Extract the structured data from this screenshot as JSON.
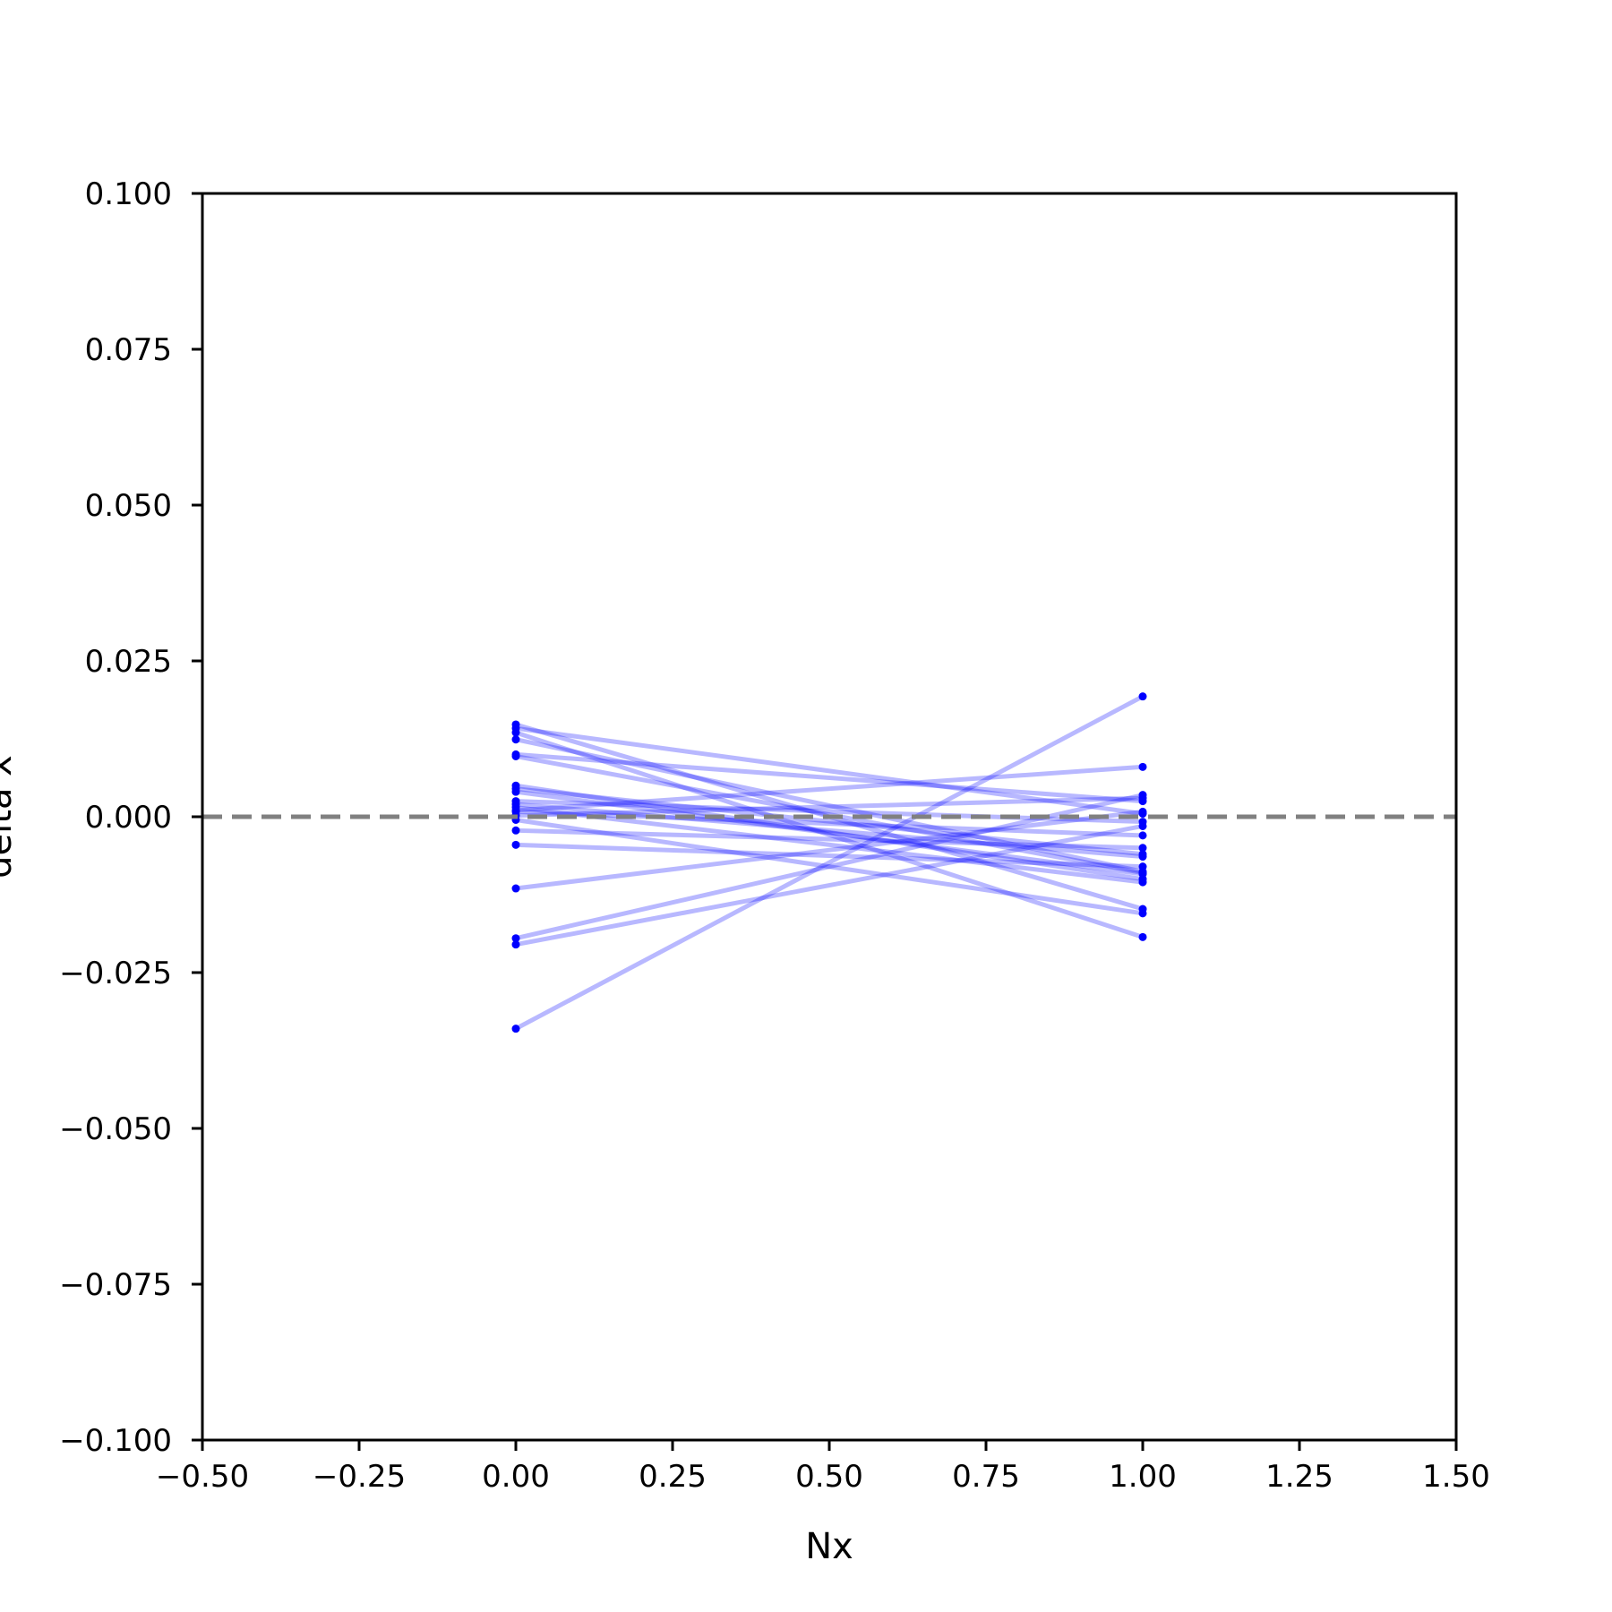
{
  "chart_data": {
    "type": "line",
    "title": "",
    "xlabel": "Nx",
    "ylabel": "delta x",
    "xlim": [
      -0.5,
      1.5
    ],
    "ylim": [
      -0.1,
      0.1
    ],
    "xticks": [
      -0.5,
      -0.25,
      0.0,
      0.25,
      0.5,
      0.75,
      1.0,
      1.25,
      1.5
    ],
    "xtick_labels": [
      "−0.50",
      "−0.25",
      "0.00",
      "0.25",
      "0.50",
      "0.75",
      "1.00",
      "1.25",
      "1.50"
    ],
    "yticks": [
      0.1,
      0.075,
      0.05,
      0.025,
      0.0,
      -0.025,
      -0.05,
      -0.075,
      -0.1
    ],
    "ytick_labels": [
      "0.100",
      "0.075",
      "0.050",
      "0.025",
      "0.000",
      "−0.025",
      "−0.050",
      "−0.075",
      "−0.100"
    ],
    "grid": false,
    "reference_line": {
      "y": 0.0,
      "style": "dashed",
      "color": "#808080"
    },
    "series_color": "#0000ff",
    "x": [
      0,
      1
    ],
    "series": [
      {
        "values": [
          0.0148,
          -0.0148
        ]
      },
      {
        "values": [
          0.0142,
          0.0005
        ]
      },
      {
        "values": [
          0.0135,
          -0.0193
        ]
      },
      {
        "values": [
          0.0124,
          -0.0088
        ]
      },
      {
        "values": [
          0.01,
          0.0025
        ]
      },
      {
        "values": [
          0.0097,
          -0.009
        ]
      },
      {
        "values": [
          0.005,
          -0.01
        ]
      },
      {
        "values": [
          0.0045,
          -0.006
        ]
      },
      {
        "values": [
          0.004,
          -0.0092
        ]
      },
      {
        "values": [
          0.0025,
          -0.0008
        ]
      },
      {
        "values": [
          0.002,
          -0.0064
        ]
      },
      {
        "values": [
          0.0015,
          -0.0105
        ]
      },
      {
        "values": [
          0.0008,
          -0.003
        ]
      },
      {
        "values": [
          0.0002,
          0.003
        ]
      },
      {
        "values": [
          -0.0005,
          -0.0155
        ]
      },
      {
        "values": [
          -0.0022,
          -0.005
        ]
      },
      {
        "values": [
          -0.0045,
          -0.008
        ]
      },
      {
        "values": [
          -0.0115,
          0.0008
        ]
      },
      {
        "values": [
          -0.0195,
          0.0035
        ]
      },
      {
        "values": [
          -0.0205,
          -0.0015
        ]
      },
      {
        "values": [
          -0.034,
          0.0193
        ]
      },
      {
        "values": [
          0.001,
          0.008
        ]
      }
    ]
  }
}
